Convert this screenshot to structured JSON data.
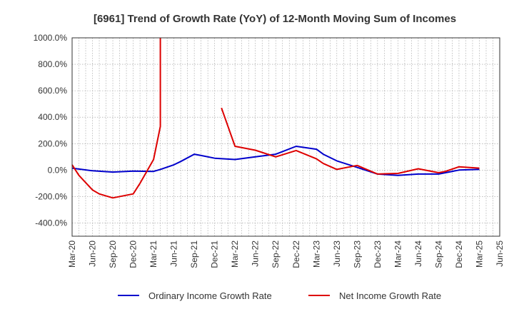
{
  "chart_data": {
    "type": "line",
    "title": "[6961]  Trend of Growth Rate (YoY) of 12-Month Moving Sum of Incomes",
    "xlabel": "",
    "ylabel": "",
    "ylim": [
      -500,
      1000
    ],
    "yticks": [
      -400,
      -200,
      0,
      200,
      400,
      600,
      800,
      1000
    ],
    "ytick_labels": [
      "-400.0%",
      "-200.0%",
      "0.0%",
      "200.0%",
      "400.0%",
      "600.0%",
      "800.0%",
      "1000.0%"
    ],
    "xlim": [
      "2020-03",
      "2025-06"
    ],
    "xtick_labels": [
      "Mar-20",
      "Jun-20",
      "Sep-20",
      "Dec-20",
      "Mar-21",
      "Jun-21",
      "Sep-21",
      "Dec-21",
      "Mar-22",
      "Jun-22",
      "Sep-22",
      "Dec-22",
      "Mar-23",
      "Jun-23",
      "Sep-23",
      "Dec-23",
      "Mar-24",
      "Jun-24",
      "Sep-24",
      "Dec-24",
      "Mar-25",
      "Jun-25"
    ],
    "grid": true,
    "legend_position": "bottom",
    "series": [
      {
        "name": "Ordinary Income Growth Rate",
        "color": "#0000cc",
        "points": [
          [
            "2020-03",
            15
          ],
          [
            "2020-06",
            -5
          ],
          [
            "2020-09",
            -15
          ],
          [
            "2020-12",
            -8
          ],
          [
            "2021-03",
            -10
          ],
          [
            "2021-04",
            5
          ],
          [
            "2021-06",
            40
          ],
          [
            "2021-07",
            65
          ],
          [
            "2021-09",
            120
          ],
          [
            "2021-10",
            110
          ],
          [
            "2021-12",
            90
          ],
          [
            "2022-03",
            80
          ],
          [
            "2022-06",
            100
          ],
          [
            "2022-09",
            120
          ],
          [
            "2022-10",
            140
          ],
          [
            "2022-12",
            180
          ],
          [
            "2023-03",
            158
          ],
          [
            "2023-04",
            120
          ],
          [
            "2023-06",
            70
          ],
          [
            "2023-09",
            20
          ],
          [
            "2023-12",
            -30
          ],
          [
            "2024-03",
            -40
          ],
          [
            "2024-06",
            -30
          ],
          [
            "2024-09",
            -30
          ],
          [
            "2024-12",
            0
          ],
          [
            "2025-03",
            5
          ]
        ]
      },
      {
        "name": "Net Income Growth Rate",
        "color": "#dd0000",
        "segments": [
          [
            [
              "2020-03",
              40
            ],
            [
              "2020-04",
              -40
            ],
            [
              "2020-06",
              -150
            ],
            [
              "2020-07",
              -180
            ],
            [
              "2020-09",
              -210
            ],
            [
              "2020-12",
              -180
            ],
            [
              "2021-01",
              -100
            ],
            [
              "2021-03",
              80
            ],
            [
              "2021-04",
              330
            ],
            [
              "2021-04",
              1000
            ]
          ],
          [
            [
              "2022-01",
              470
            ],
            [
              "2022-03",
              180
            ],
            [
              "2022-06",
              150
            ],
            [
              "2022-09",
              100
            ],
            [
              "2022-12",
              148
            ],
            [
              "2023-03",
              85
            ],
            [
              "2023-04",
              50
            ],
            [
              "2023-06",
              5
            ],
            [
              "2023-09",
              35
            ],
            [
              "2023-12",
              -30
            ],
            [
              "2024-03",
              -25
            ],
            [
              "2024-06",
              10
            ],
            [
              "2024-09",
              -20
            ],
            [
              "2024-10",
              -10
            ],
            [
              "2024-12",
              25
            ],
            [
              "2025-03",
              15
            ]
          ]
        ]
      }
    ]
  }
}
